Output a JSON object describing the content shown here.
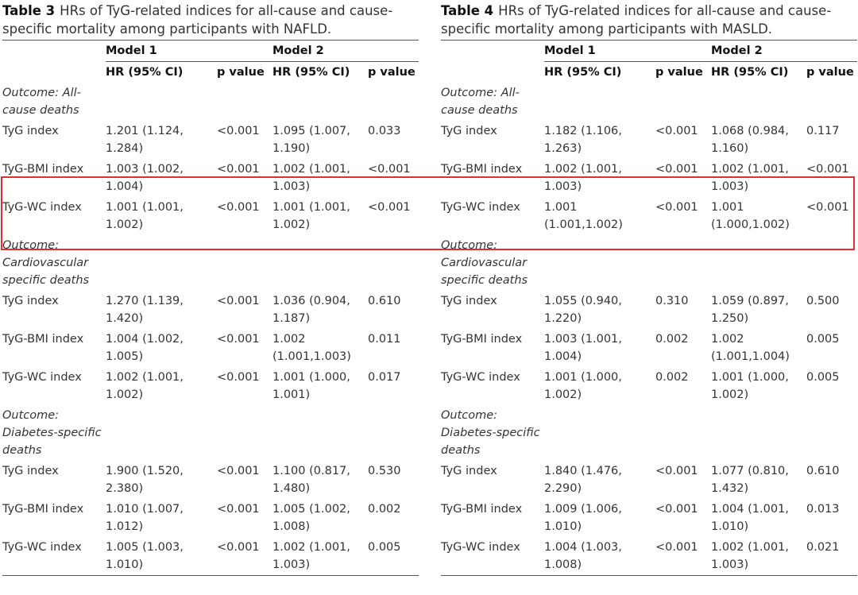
{
  "tables": [
    {
      "label": "Table 3",
      "caption": "HRs of TyG-related indices for all-cause and cause-specific mortality among participants with NAFLD.",
      "groups": [
        "Model 1",
        "Model 2"
      ],
      "columns": [
        "HR (95% CI)",
        "p value",
        "HR (95% CI)",
        "p value"
      ],
      "sections": [
        {
          "outcome": "Outcome: All-cause deaths",
          "rows": [
            [
              "TyG index",
              "1.201 (1.124, 1.284)",
              "<0.001",
              "1.095 (1.007, 1.190)",
              "0.033"
            ],
            [
              "TyG-BMI index",
              "1.003 (1.002, 1.004)",
              "<0.001",
              "1.002 (1.001, 1.003)",
              "<0.001"
            ],
            [
              "TyG-WC index",
              "1.001 (1.001, 1.002)",
              "<0.001",
              "1.001 (1.001, 1.002)",
              "<0.001"
            ]
          ]
        },
        {
          "outcome": "Outcome: Cardiovascular specific deaths",
          "rows": [
            [
              "TyG index",
              "1.270 (1.139, 1.420)",
              "<0.001",
              "1.036 (0.904, 1.187)",
              "0.610"
            ],
            [
              "TyG-BMI index",
              "1.004 (1.002, 1.005)",
              "<0.001",
              "1.002 (1.001,1.003)",
              "0.011"
            ],
            [
              "TyG-WC index",
              "1.002 (1.001, 1.002)",
              "<0.001",
              "1.001 (1.000, 1.001)",
              "0.017"
            ]
          ]
        },
        {
          "outcome": "Outcome: Diabetes-specific deaths",
          "rows": [
            [
              "TyG index",
              "1.900 (1.520, 2.380)",
              "<0.001",
              "1.100 (0.817, 1.480)",
              "0.530"
            ],
            [
              "TyG-BMI index",
              "1.010 (1.007, 1.012)",
              "<0.001",
              "1.005 (1.002, 1.008)",
              "0.002"
            ],
            [
              "TyG-WC index",
              "1.005 (1.003, 1.010)",
              "<0.001",
              "1.002 (1.001, 1.003)",
              "0.005"
            ]
          ]
        }
      ]
    },
    {
      "label": "Table 4",
      "caption": "HRs of TyG-related indices for all-cause and cause-specific mortality among participants with MASLD.",
      "groups": [
        "Model 1",
        "Model 2"
      ],
      "columns": [
        "HR (95% CI)",
        "p value",
        "HR (95% CI)",
        "p value"
      ],
      "sections": [
        {
          "outcome": "Outcome: All-cause deaths",
          "rows": [
            [
              "TyG index",
              "1.182 (1.106, 1.263)",
              "<0.001",
              "1.068 (0.984, 1.160)",
              "0.117"
            ],
            [
              "TyG-BMI index",
              "1.002 (1.001, 1.003)",
              "<0.001",
              "1.002 (1.001, 1.003)",
              "<0.001"
            ],
            [
              "TyG-WC index",
              "1.001 (1.001,1.002)",
              "<0.001",
              "1.001 (1.000,1.002)",
              "<0.001"
            ]
          ]
        },
        {
          "outcome": "Outcome: Cardiovascular specific deaths",
          "rows": [
            [
              "TyG index",
              "1.055 (0.940, 1.220)",
              "0.310",
              "1.059 (0.897, 1.250)",
              "0.500"
            ],
            [
              "TyG-BMI index",
              "1.003 (1.001, 1.004)",
              "0.002",
              "1.002 (1.001,1.004)",
              "0.005"
            ],
            [
              "TyG-WC index",
              "1.001 (1.000, 1.002)",
              "0.002",
              "1.001 (1.000, 1.002)",
              "0.005"
            ]
          ]
        },
        {
          "outcome": "Outcome: Diabetes-specific deaths",
          "rows": [
            [
              "TyG index",
              "1.840 (1.476, 2.290)",
              "<0.001",
              "1.077 (0.810, 1.432)",
              "0.610"
            ],
            [
              "TyG-BMI index",
              "1.009 (1.006, 1.010)",
              "<0.001",
              "1.004 (1.001, 1.010)",
              "0.013"
            ],
            [
              "TyG-WC index",
              "1.004 (1.003, 1.008)",
              "<0.001",
              "1.002 (1.001, 1.003)",
              "0.021"
            ]
          ]
        }
      ]
    }
  ]
}
